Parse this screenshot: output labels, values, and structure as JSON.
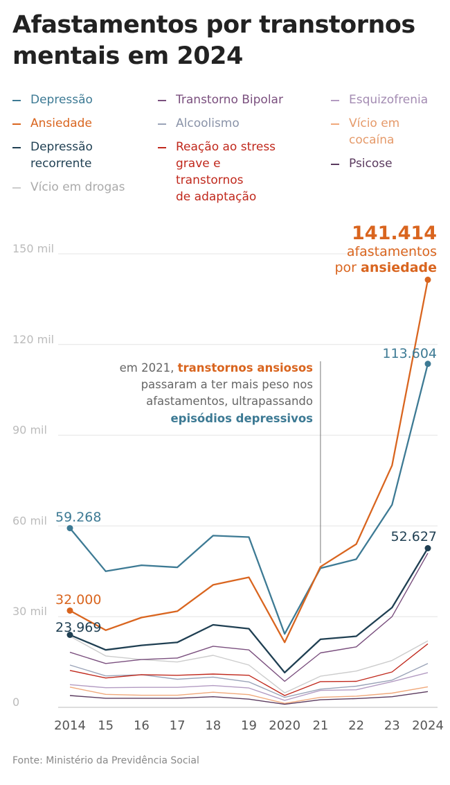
{
  "title": "Afastamentos por transtornos mentais em 2024",
  "source": "Fonte: Ministério da Previdência Social",
  "chart_data": {
    "type": "line",
    "x_tick_labels": [
      "2014",
      "15",
      "16",
      "17",
      "18",
      "19",
      "2020",
      "21",
      "22",
      "23",
      "2024"
    ],
    "y_ticks": [
      {
        "value": 0,
        "label": "0"
      },
      {
        "value": 30000,
        "label": "30 mil"
      },
      {
        "value": 60000,
        "label": "60 mil"
      },
      {
        "value": 90000,
        "label": "90 mil"
      },
      {
        "value": 120000,
        "label": "120 mil"
      },
      {
        "value": 150000,
        "label": "150 mil"
      }
    ],
    "ylim": [
      0,
      150000
    ],
    "series": [
      {
        "name": "Depressão",
        "color": "#3d7a94",
        "bold": true,
        "values": [
          59268,
          45000,
          47000,
          46300,
          56800,
          56300,
          24300,
          46000,
          49000,
          67000,
          113604
        ]
      },
      {
        "name": "Ansiedade",
        "color": "#d9651f",
        "bold": true,
        "values": [
          32000,
          25500,
          29700,
          31800,
          40500,
          43000,
          21500,
          46500,
          54000,
          80000,
          141414
        ]
      },
      {
        "name": "Depressão recorrente",
        "color": "#1f3f52",
        "bold": true,
        "values": [
          23969,
          19000,
          20500,
          21500,
          27300,
          26000,
          11500,
          22500,
          23500,
          33000,
          52627
        ]
      },
      {
        "name": "Vício em drogas",
        "color": "#cccccc",
        "bold": false,
        "values": [
          23500,
          17000,
          15800,
          15000,
          17200,
          14000,
          4800,
          10300,
          12000,
          15500,
          22000
        ]
      },
      {
        "name": "Transtorno Bipolar",
        "color": "#7a4f7e",
        "bold": false,
        "values": [
          18200,
          14500,
          15800,
          16300,
          20200,
          19000,
          8600,
          18000,
          20000,
          30000,
          51000
        ]
      },
      {
        "name": "Alcoolismo",
        "color": "#9aa3b8",
        "bold": false,
        "values": [
          14000,
          10400,
          10800,
          9300,
          10000,
          8400,
          3300,
          6000,
          7000,
          9000,
          14500
        ]
      },
      {
        "name": "Reação ao stress grave e transtornos de adaptação",
        "color": "#c0281c",
        "bold": false,
        "values": [
          12200,
          9700,
          10800,
          10600,
          11000,
          10600,
          3900,
          8500,
          8600,
          11700,
          21000
        ]
      },
      {
        "name": "Esquizofrenia",
        "color": "#b39bc2",
        "bold": false,
        "values": [
          7500,
          6500,
          6600,
          6600,
          7200,
          6400,
          2300,
          5600,
          5800,
          8500,
          11500
        ]
      },
      {
        "name": "Vício em cocaína",
        "color": "#f0a87a",
        "bold": false,
        "values": [
          6700,
          4300,
          4000,
          4000,
          5000,
          4200,
          1300,
          3300,
          3700,
          4700,
          6800
        ]
      },
      {
        "name": "Psicose",
        "color": "#5a3a5e",
        "bold": false,
        "values": [
          3900,
          3000,
          3000,
          3000,
          3500,
          2700,
          1000,
          2500,
          2900,
          3500,
          5200
        ]
      }
    ],
    "endpoint_labels": {
      "dep_2014": "59.268",
      "ans_2014": "32.000",
      "rec_2014": "23.969",
      "dep_2024": "113.604",
      "rec_2024": "52.627",
      "ans_2024_value": "141.414",
      "ans_2024_line1": "afastamentos",
      "ans_2024_prefix": "por ",
      "ans_2024_keyword": "ansiedade"
    },
    "annotation": {
      "line1_prefix": "em 2021, ",
      "line1_highlight": "transtornos ansiosos",
      "line2": "passaram a ter mais peso nos",
      "line3": "afastamentos, ultrapassando",
      "line4_highlight": "episódios depressivos"
    }
  },
  "legend": [
    {
      "lines": [
        "Depressão"
      ],
      "color": "#3d7a94",
      "text_color": "#3d7a94"
    },
    {
      "lines": [
        "Ansiedade"
      ],
      "color": "#d9651f",
      "text_color": "#d9651f"
    },
    {
      "lines": [
        "Depressão",
        "recorrente"
      ],
      "color": "#1f3f52",
      "text_color": "#1f3f52"
    },
    {
      "lines": [
        "Vício em drogas"
      ],
      "color": "#cccccc",
      "text_color": "#aaaaaa"
    },
    {
      "lines": [
        "Transtorno Bipolar"
      ],
      "color": "#7a4f7e",
      "text_color": "#7a4f7e"
    },
    {
      "lines": [
        "Alcoolismo"
      ],
      "color": "#9aa3b8",
      "text_color": "#8a93a8"
    },
    {
      "lines": [
        "Reação ao stress",
        "grave e transtornos",
        "de adaptação"
      ],
      "color": "#c0281c",
      "text_color": "#c0281c"
    },
    {
      "lines": [
        "Esquizofrenia"
      ],
      "color": "#b39bc2",
      "text_color": "#a38bb2"
    },
    {
      "lines": [
        "Vício em",
        "cocaína"
      ],
      "color": "#f0a87a",
      "text_color": "#e59a6a"
    },
    {
      "lines": [
        "Psicose"
      ],
      "color": "#5a3a5e",
      "text_color": "#5a3a5e"
    }
  ]
}
